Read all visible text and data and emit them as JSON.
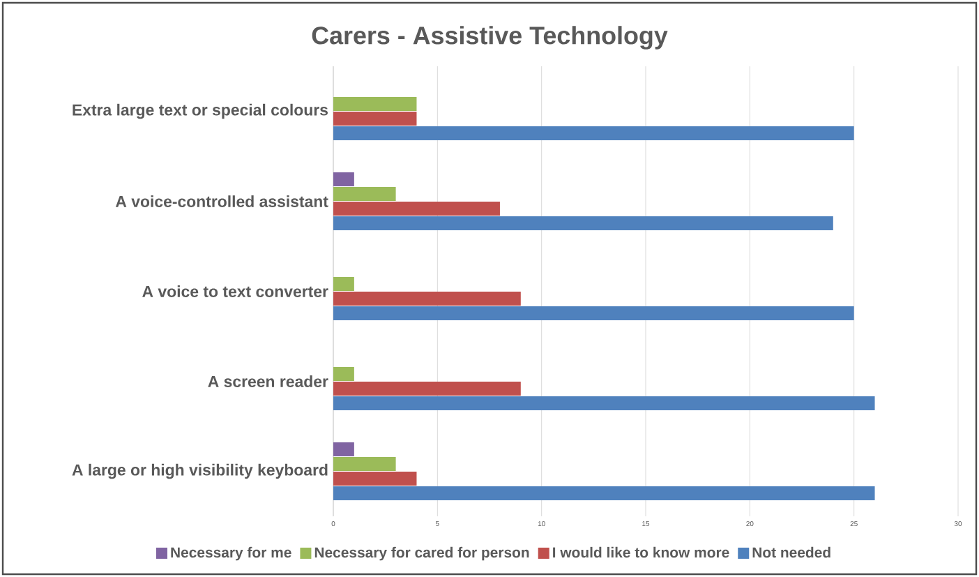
{
  "chart_data": {
    "type": "bar",
    "orientation": "horizontal",
    "title": "Carers - Assistive Technology",
    "categories": [
      "Extra large text  or special colours",
      "A voice-controlled assistant",
      "A voice to text converter",
      "A screen reader",
      "A large or high visibility keyboard"
    ],
    "series": [
      {
        "name": "Necessary for me",
        "color": "#8064a2",
        "values": [
          0,
          1,
          0,
          0,
          1
        ]
      },
      {
        "name": "Necessary for cared for person",
        "color": "#9bbb59",
        "values": [
          4,
          3,
          1,
          1,
          3
        ]
      },
      {
        "name": "I would like to know more",
        "color": "#c0504d",
        "values": [
          4,
          8,
          9,
          9,
          4
        ]
      },
      {
        "name": "Not needed",
        "color": "#4f81bd",
        "values": [
          25,
          24,
          25,
          26,
          26
        ]
      }
    ],
    "xlim": [
      0,
      30
    ],
    "xticks": [
      0,
      5,
      10,
      15,
      20,
      25,
      30
    ],
    "grid": "x",
    "legend": "bottom"
  }
}
